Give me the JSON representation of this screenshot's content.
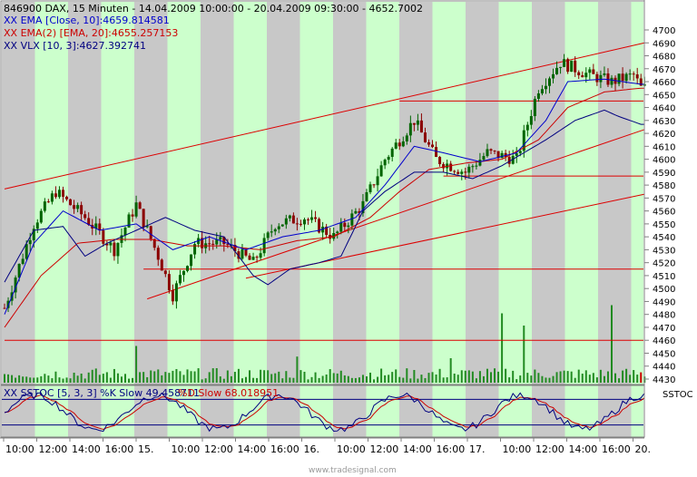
{
  "header": {
    "symbol_line": "846900  DAX, 15 Minuten - 14.04.2009 10:00:00 - 20.04.2009 09:30:00 - 4652.7002",
    "ema_line": "XX EMA [Close, 10]:4659.814581",
    "ema2_line": "XX EMA(2) [EMA, 20]:4655.257153",
    "vlx_line": "XX VLX [10, 3]:4627.392741"
  },
  "stoch_panel": {
    "label_prefix": "XX SSTOC [5, 3, 3] %K Slow 49.458711",
    "label_suffix": "%D Slow 68.018951",
    "tag": "SSTOC"
  },
  "footer": {
    "watermark": "www.tradesignal.com"
  },
  "colors": {
    "band_green": "#ccffcc",
    "band_gray": "#c8c8c8",
    "candle_up": "#006400",
    "candle_down": "#8b0000",
    "ema": "#0000cc",
    "ema2": "#cc0000",
    "trend": "#dd0000",
    "volume": "#228b22",
    "volume_down": "#cc0000"
  },
  "chart_data": {
    "type": "candlestick",
    "title": "846900  DAX, 15 Minuten",
    "price_axis": {
      "ylim": [
        4428,
        4715
      ],
      "ticks": [
        4700,
        4690,
        4680,
        4670,
        4660,
        4650,
        4640,
        4630,
        4620,
        4610,
        4600,
        4590,
        4580,
        4570,
        4560,
        4550,
        4540,
        4530,
        4520,
        4510,
        4500,
        4490,
        4480,
        4470,
        4460,
        4450,
        4440,
        4430
      ]
    },
    "time_axis": {
      "labels": [
        "10:00",
        "12:00",
        "14:00",
        "16:00",
        "15.",
        "10:00",
        "12:00",
        "14:00",
        "16:00",
        "16.",
        "10:00",
        "12:00",
        "14:00",
        "16:00",
        "17.",
        "10:00",
        "12:00",
        "14:00",
        "16:00",
        "20."
      ]
    },
    "price_anchors": [
      [
        0,
        4485
      ],
      [
        8,
        4550
      ],
      [
        14,
        4575
      ],
      [
        22,
        4555
      ],
      [
        30,
        4530
      ],
      [
        36,
        4565
      ],
      [
        42,
        4525
      ],
      [
        46,
        4495
      ],
      [
        52,
        4535
      ],
      [
        60,
        4535
      ],
      [
        68,
        4520
      ],
      [
        74,
        4550
      ],
      [
        82,
        4555
      ],
      [
        90,
        4540
      ],
      [
        98,
        4565
      ],
      [
        104,
        4600
      ],
      [
        112,
        4630
      ],
      [
        118,
        4600
      ],
      [
        126,
        4590
      ],
      [
        132,
        4605
      ],
      [
        140,
        4600
      ],
      [
        146,
        4655
      ],
      [
        152,
        4675
      ],
      [
        160,
        4665
      ],
      [
        166,
        4660
      ],
      [
        172,
        4665
      ],
      [
        174,
        4655
      ]
    ],
    "ema_line": [
      [
        0,
        4480
      ],
      [
        8,
        4535
      ],
      [
        16,
        4560
      ],
      [
        26,
        4545
      ],
      [
        36,
        4550
      ],
      [
        46,
        4530
      ],
      [
        56,
        4540
      ],
      [
        66,
        4530
      ],
      [
        76,
        4540
      ],
      [
        86,
        4545
      ],
      [
        96,
        4555
      ],
      [
        104,
        4580
      ],
      [
        112,
        4610
      ],
      [
        120,
        4605
      ],
      [
        130,
        4598
      ],
      [
        140,
        4605
      ],
      [
        148,
        4630
      ],
      [
        154,
        4660
      ],
      [
        164,
        4662
      ],
      [
        174,
        4658
      ]
    ],
    "ema2_line": [
      [
        0,
        4470
      ],
      [
        10,
        4510
      ],
      [
        20,
        4535
      ],
      [
        30,
        4538
      ],
      [
        40,
        4538
      ],
      [
        50,
        4533
      ],
      [
        60,
        4533
      ],
      [
        70,
        4530
      ],
      [
        80,
        4537
      ],
      [
        90,
        4540
      ],
      [
        100,
        4555
      ],
      [
        108,
        4575
      ],
      [
        116,
        4592
      ],
      [
        126,
        4597
      ],
      [
        136,
        4600
      ],
      [
        146,
        4615
      ],
      [
        154,
        4640
      ],
      [
        164,
        4652
      ],
      [
        174,
        4655
      ]
    ],
    "vlx_line": [
      [
        0,
        4505
      ],
      [
        8,
        4545
      ],
      [
        16,
        4548
      ],
      [
        22,
        4525
      ],
      [
        28,
        4535
      ],
      [
        36,
        4545
      ],
      [
        44,
        4555
      ],
      [
        52,
        4545
      ],
      [
        60,
        4540
      ],
      [
        68,
        4510
      ],
      [
        72,
        4503
      ],
      [
        78,
        4515
      ],
      [
        86,
        4520
      ],
      [
        92,
        4525
      ],
      [
        98,
        4560
      ],
      [
        104,
        4575
      ],
      [
        112,
        4590
      ],
      [
        120,
        4590
      ],
      [
        128,
        4585
      ],
      [
        136,
        4595
      ],
      [
        142,
        4605
      ],
      [
        148,
        4615
      ],
      [
        156,
        4630
      ],
      [
        164,
        4638
      ],
      [
        168,
        4633
      ],
      [
        174,
        4627
      ]
    ],
    "volume_spikes": [
      [
        36,
        0.45
      ],
      [
        80,
        0.32
      ],
      [
        122,
        0.3
      ],
      [
        136,
        0.85
      ],
      [
        142,
        0.7
      ],
      [
        166,
        0.95
      ]
    ],
    "trend_lines": [
      {
        "from": [
          0,
          4577
        ],
        "to": [
          175,
          4690
        ]
      },
      {
        "from": [
          39,
          4492
        ],
        "to": [
          175,
          4623
        ]
      },
      {
        "from": [
          66,
          4508
        ],
        "to": [
          175,
          4573
        ]
      }
    ],
    "horizontal_lines": [
      {
        "y": 4645,
        "from": 108,
        "to": 175
      },
      {
        "y": 4587,
        "from": 120,
        "to": 175
      },
      {
        "y": 4515,
        "from": 38,
        "to": 175
      },
      {
        "y": 4460,
        "from": 0,
        "to": 175
      }
    ],
    "stochastic": {
      "k_slow": 49.458711,
      "d_slow": 68.018951,
      "upper": 80,
      "lower": 20
    }
  }
}
